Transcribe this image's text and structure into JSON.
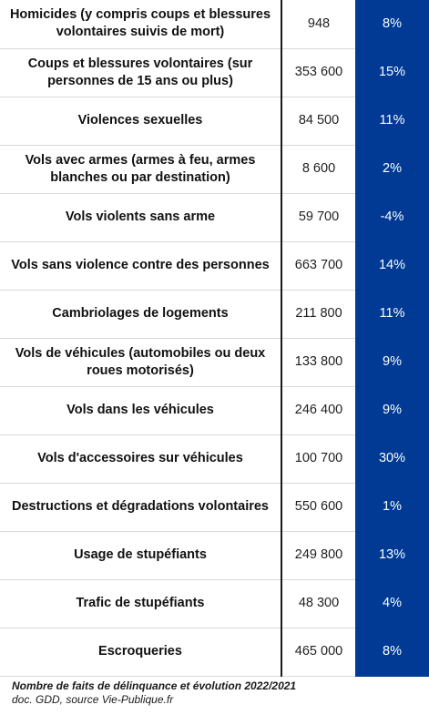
{
  "table": {
    "rows": [
      {
        "label": "Homicides (y compris coups et blessures volontaires suivis de mort)",
        "count": "948",
        "change": "8%"
      },
      {
        "label": "Coups et blessures volontaires (sur personnes de 15 ans ou plus)",
        "count": "353 600",
        "change": "15%"
      },
      {
        "label": "Violences sexuelles",
        "count": "84 500",
        "change": "11%"
      },
      {
        "label": "Vols avec armes (armes à feu, armes blanches ou par destination)",
        "count": "8 600",
        "change": "2%"
      },
      {
        "label": "Vols violents sans arme",
        "count": "59 700",
        "change": "-4%"
      },
      {
        "label": "Vols sans violence contre des personnes",
        "count": "663 700",
        "change": "14%"
      },
      {
        "label": "Cambriolages de logements",
        "count": "211 800",
        "change": "11%"
      },
      {
        "label": "Vols de véhicules (automobiles ou deux roues motorisés)",
        "count": "133 800",
        "change": "9%"
      },
      {
        "label": "Vols dans les véhicules",
        "count": "246 400",
        "change": "9%"
      },
      {
        "label": "Vols d'accessoires sur véhicules",
        "count": "100 700",
        "change": "30%"
      },
      {
        "label": "Destructions et dégradations volontaires",
        "count": "550 600",
        "change": "1%"
      },
      {
        "label": "Usage de stupéfiants",
        "count": "249 800",
        "change": "13%"
      },
      {
        "label": "Trafic de stupéfiants",
        "count": "48 300",
        "change": "4%"
      },
      {
        "label": "Escroqueries",
        "count": "465 000",
        "change": "8%"
      }
    ]
  },
  "caption": {
    "title": "Nombre de faits de délinquance et évolution 2022/2021",
    "source": "doc. GDD, source Vie-Publique.fr"
  },
  "colors": {
    "accent": "#003a95",
    "divider": "#1a1a1a"
  }
}
